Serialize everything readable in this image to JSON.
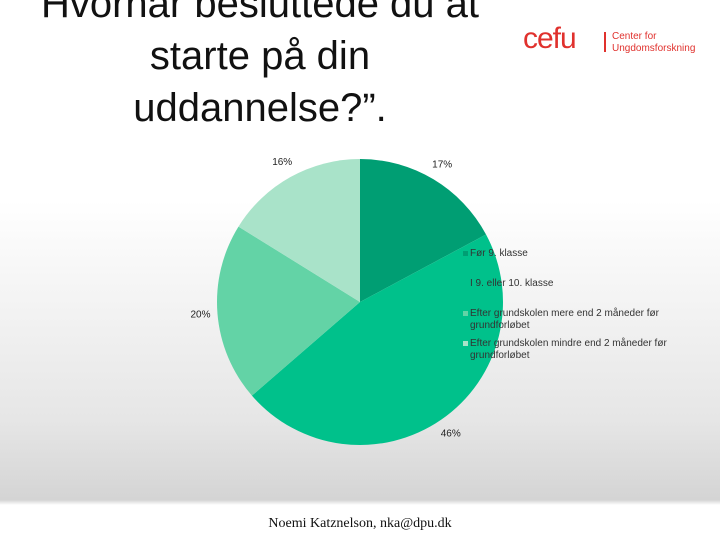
{
  "title_lines": [
    "Hvornår besluttede du at",
    "starte på din",
    "uddannelse?”."
  ],
  "logo": {
    "name": "cefu",
    "lines": [
      "Center for",
      "Ungdomsforskning"
    ]
  },
  "footer": "Noemi Katznelson, nka@dpu.dk",
  "chart_data": {
    "type": "pie",
    "categories": [
      "Før 9. klasse",
      "I 9. eller 10. klasse",
      "Efter grundskolen mere end 2 måneder før grundforløbet",
      "Efter grundskolen mindre end 2 måneder før grundforløbet"
    ],
    "values": [
      17,
      46,
      20,
      16
    ],
    "value_labels": [
      "17%",
      "46%",
      "20%",
      "16%"
    ],
    "colors": [
      "#009e73",
      "#00c18b",
      "#63d3a6",
      "#a9e3c9"
    ]
  }
}
